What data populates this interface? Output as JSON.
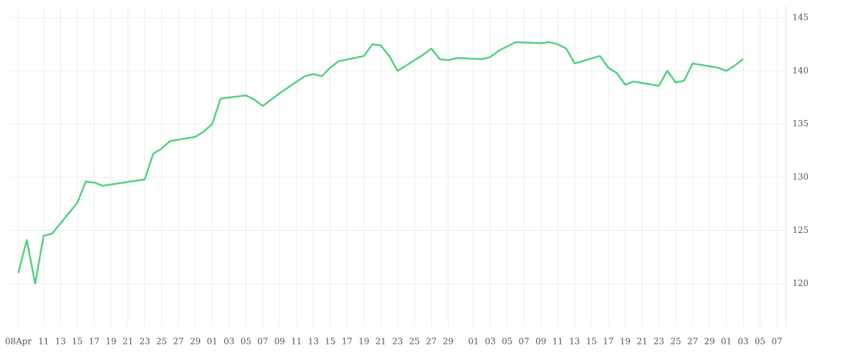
{
  "chart_data": {
    "type": "line",
    "x": [
      "04-08",
      "04-09",
      "04-10",
      "04-11",
      "04-12",
      "04-15",
      "04-16",
      "04-17",
      "04-18",
      "04-23",
      "04-24",
      "04-25",
      "04-26",
      "04-29",
      "04-30",
      "05-01",
      "05-02",
      "05-05",
      "05-06",
      "05-07",
      "05-09",
      "05-12",
      "05-13",
      "05-14",
      "05-15",
      "05-16",
      "05-19",
      "05-20",
      "05-21",
      "05-22",
      "05-23",
      "05-26",
      "05-27",
      "05-28",
      "05-29",
      "05-30",
      "06-02",
      "06-03",
      "06-04",
      "06-05",
      "06-06",
      "06-09",
      "06-10",
      "06-11",
      "06-12",
      "06-13",
      "06-16",
      "06-17",
      "06-18",
      "06-19",
      "06-20",
      "06-23",
      "06-24",
      "06-25",
      "06-26",
      "06-27",
      "06-30",
      "07-01",
      "07-02",
      "07-03"
    ],
    "series": [
      {
        "color": "#4fd17f",
        "values": [
          121.0,
          124.1,
          120.0,
          124.5,
          124.7,
          127.6,
          129.6,
          129.5,
          129.2,
          129.8,
          132.2,
          132.7,
          133.4,
          133.8,
          134.3,
          135.0,
          137.4,
          137.7,
          137.3,
          136.7,
          137.9,
          139.5,
          139.7,
          139.5,
          140.3,
          140.9,
          141.4,
          142.5,
          142.4,
          141.4,
          140.0,
          141.5,
          142.1,
          141.1,
          141.0,
          141.2,
          141.1,
          141.3,
          141.9,
          142.3,
          142.7,
          142.6,
          142.7,
          142.5,
          142.1,
          140.7,
          141.4,
          140.3,
          139.8,
          138.7,
          139.0,
          138.6,
          140.0,
          138.9,
          139.1,
          140.7,
          140.3,
          140.0,
          140.5,
          141.1
        ]
      }
    ],
    "xlim": [
      "04-07",
      "07-08"
    ],
    "xticks": [
      {
        "value": "04-08",
        "label": "08Apr"
      },
      {
        "value": "04-11",
        "label": "11"
      },
      {
        "value": "04-13",
        "label": "13"
      },
      {
        "value": "04-15",
        "label": "15"
      },
      {
        "value": "04-17",
        "label": "17"
      },
      {
        "value": "04-19",
        "label": "19"
      },
      {
        "value": "04-21",
        "label": "21"
      },
      {
        "value": "04-23",
        "label": "23"
      },
      {
        "value": "04-25",
        "label": "25"
      },
      {
        "value": "04-27",
        "label": "27"
      },
      {
        "value": "04-29",
        "label": "29"
      },
      {
        "value": "05-01",
        "label": "01"
      },
      {
        "value": "05-03",
        "label": "03"
      },
      {
        "value": "05-05",
        "label": "05"
      },
      {
        "value": "05-07",
        "label": "07"
      },
      {
        "value": "05-09",
        "label": "09"
      },
      {
        "value": "05-11",
        "label": "11"
      },
      {
        "value": "05-13",
        "label": "13"
      },
      {
        "value": "05-15",
        "label": "15"
      },
      {
        "value": "05-17",
        "label": "17"
      },
      {
        "value": "05-19",
        "label": "19"
      },
      {
        "value": "05-21",
        "label": "21"
      },
      {
        "value": "05-23",
        "label": "23"
      },
      {
        "value": "05-25",
        "label": "25"
      },
      {
        "value": "05-27",
        "label": "27"
      },
      {
        "value": "05-29",
        "label": "29"
      },
      {
        "value": "06-01",
        "label": "01"
      },
      {
        "value": "06-03",
        "label": "03"
      },
      {
        "value": "06-05",
        "label": "05"
      },
      {
        "value": "06-07",
        "label": "07"
      },
      {
        "value": "06-09",
        "label": "09"
      },
      {
        "value": "06-11",
        "label": "11"
      },
      {
        "value": "06-13",
        "label": "13"
      },
      {
        "value": "06-15",
        "label": "15"
      },
      {
        "value": "06-17",
        "label": "17"
      },
      {
        "value": "06-19",
        "label": "19"
      },
      {
        "value": "06-21",
        "label": "21"
      },
      {
        "value": "06-23",
        "label": "23"
      },
      {
        "value": "06-25",
        "label": "25"
      },
      {
        "value": "06-27",
        "label": "27"
      },
      {
        "value": "06-29",
        "label": "29"
      },
      {
        "value": "07-01",
        "label": "01"
      },
      {
        "value": "07-03",
        "label": "03"
      },
      {
        "value": "07-05",
        "label": "05"
      },
      {
        "value": "07-07",
        "label": "07"
      }
    ],
    "ylim": [
      116,
      146
    ],
    "yticks": [
      120,
      125,
      130,
      135,
      140,
      145
    ],
    "grid": true
  }
}
